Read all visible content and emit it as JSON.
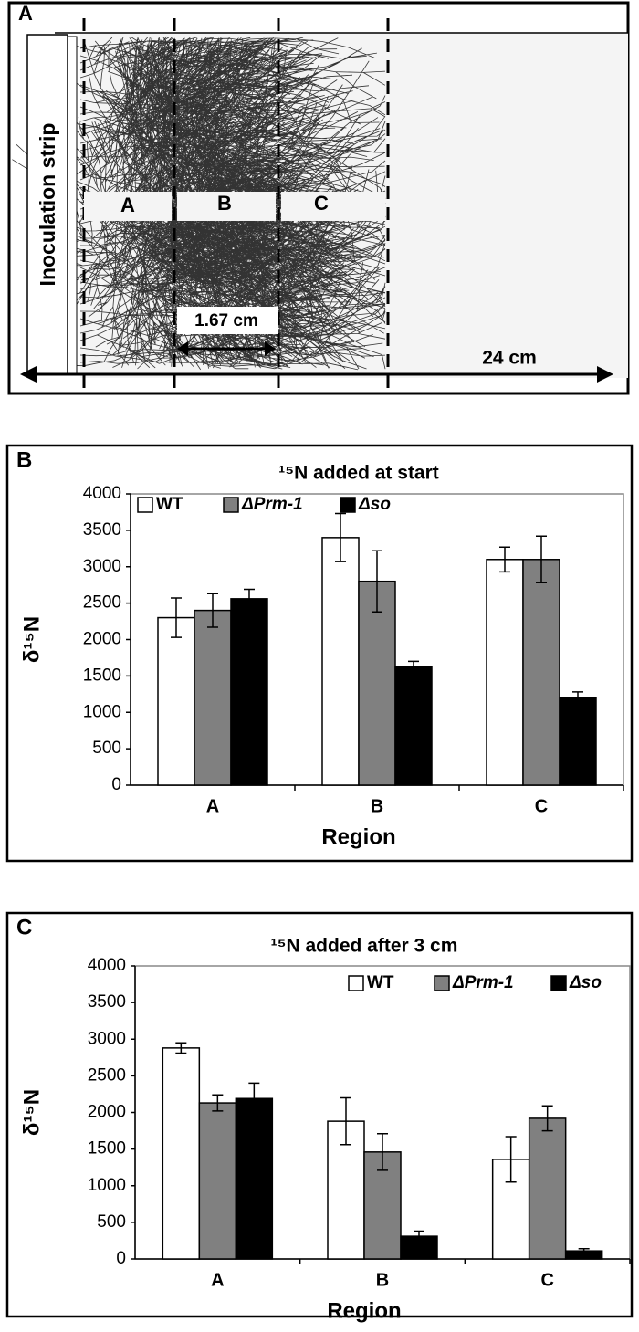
{
  "panel_labels": [
    "A",
    "B",
    "C"
  ],
  "diagram": {
    "strip_label": "Inoculation strip",
    "regions": [
      "A",
      "B",
      "C"
    ],
    "width_label": "1.67 cm",
    "length_label": "24 cm"
  },
  "chart_data": [
    {
      "type": "bar",
      "title": "¹⁵N added at start",
      "x_label": "Region",
      "y_label": "δ¹⁵N",
      "categories": [
        "A",
        "B",
        "C"
      ],
      "series": [
        {
          "name": "WT",
          "color": "#ffffff",
          "values": [
            2300,
            3400,
            3100
          ],
          "errors": [
            270,
            330,
            170
          ]
        },
        {
          "name": "ΔPrm-1",
          "color": "#808080",
          "values": [
            2400,
            2800,
            3100
          ],
          "errors": [
            230,
            420,
            320
          ]
        },
        {
          "name": "Δso",
          "color": "#000000",
          "values": [
            2560,
            1630,
            1200
          ],
          "errors": [
            130,
            70,
            80
          ]
        }
      ],
      "ylim": [
        0,
        4000
      ],
      "yticks": [
        0,
        500,
        1000,
        1500,
        2000,
        2500,
        3000,
        3500,
        4000
      ],
      "legend": "upper left"
    },
    {
      "type": "bar",
      "title": "¹⁵N added after 3 cm",
      "x_label": "Region",
      "y_label": "δ¹⁵N",
      "categories": [
        "A",
        "B",
        "C"
      ],
      "series": [
        {
          "name": "WT",
          "color": "#ffffff",
          "values": [
            2880,
            1880,
            1360
          ],
          "errors": [
            70,
            320,
            310
          ]
        },
        {
          "name": "ΔPrm-1",
          "color": "#808080",
          "values": [
            2130,
            1460,
            1920
          ],
          "errors": [
            110,
            250,
            170
          ]
        },
        {
          "name": "Δso",
          "color": "#000000",
          "values": [
            2190,
            310,
            110
          ],
          "errors": [
            210,
            70,
            30
          ]
        }
      ],
      "ylim": [
        0,
        4000
      ],
      "yticks": [
        0,
        500,
        1000,
        1500,
        2000,
        2500,
        3000,
        3500,
        4000
      ],
      "legend": "upper right"
    }
  ]
}
